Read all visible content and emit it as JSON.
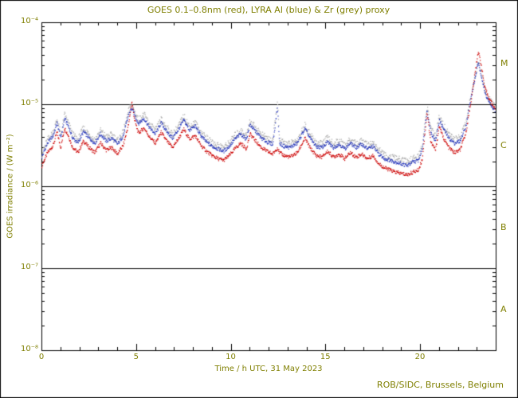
{
  "page": {
    "title": "GOES 0.1–0.8nm (red), LYRA Al (blue) & Zr (grey) proxy",
    "xlabel": "Time / h UTC, 31 May 2023",
    "ylabel": "GOES irradiance / (W m⁻²)",
    "credit": "ROB/SIDC, Brussels, Belgium",
    "text_color": "#7f7f00",
    "frame_color": "#000000",
    "background_color": "#ffffff"
  },
  "chart_data": {
    "type": "scatter",
    "title": "GOES 0.1–0.8nm (red), LYRA Al (blue) & Zr (grey) proxy",
    "xlabel": "Time / h UTC, 31 May 2023",
    "ylabel": "GOES irradiance / (W m-2)",
    "x_range": [
      0,
      24
    ],
    "x_major_ticks": [
      0,
      5,
      10,
      15,
      20
    ],
    "x_minor_step": 1,
    "y_log_range": [
      -8,
      -4
    ],
    "y_tick_exponents": [
      -4,
      -5,
      -6,
      -7,
      -8
    ],
    "y_tick_labels": [
      "10⁻⁴",
      "10⁻⁵",
      "10⁻⁶",
      "10⁻⁷",
      "10⁻⁸"
    ],
    "hlines_wm2": [
      1e-05,
      1e-06,
      1e-07
    ],
    "class_labels": [
      {
        "label": "M",
        "log_mid": -4.5
      },
      {
        "label": "C",
        "log_mid": -5.5
      },
      {
        "label": "B",
        "log_mid": -6.5
      },
      {
        "label": "A",
        "log_mid": -7.5
      }
    ],
    "grid": false,
    "legend_position": "in-title",
    "value_scale": 1e-06,
    "t_hours": [
      0,
      0.3,
      0.6,
      0.8,
      1.0,
      1.2,
      1.4,
      1.6,
      1.9,
      2.2,
      2.5,
      2.8,
      3.1,
      3.4,
      3.7,
      4.0,
      4.3,
      4.6,
      4.75,
      4.9,
      5.1,
      5.4,
      5.7,
      6.0,
      6.3,
      6.6,
      6.9,
      7.2,
      7.5,
      7.8,
      8.1,
      8.4,
      8.7,
      9.0,
      9.3,
      9.6,
      9.9,
      10.2,
      10.5,
      10.8,
      11.0,
      11.3,
      11.6,
      11.9,
      12.2,
      12.45,
      12.55,
      12.8,
      13.1,
      13.5,
      13.9,
      14.2,
      14.5,
      14.8,
      15.1,
      15.4,
      15.7,
      16.0,
      16.3,
      16.6,
      16.9,
      17.2,
      17.5,
      17.8,
      18.1,
      18.4,
      18.7,
      19.0,
      19.3,
      19.6,
      19.9,
      20.1,
      20.35,
      20.55,
      20.8,
      21.0,
      21.2,
      21.5,
      21.8,
      22.1,
      22.4,
      22.7,
      23.05,
      23.2,
      23.4,
      23.7,
      23.95
    ],
    "series": [
      {
        "name": "GOES 0.1-0.8nm (red)",
        "color": "#cc0000",
        "values": [
          1.8,
          2.6,
          3.2,
          4.6,
          3.0,
          5.2,
          4.2,
          3.1,
          2.6,
          3.6,
          3.0,
          2.6,
          3.4,
          2.8,
          3.0,
          2.5,
          3.2,
          6.0,
          11.0,
          6.5,
          4.5,
          5.2,
          4.0,
          3.4,
          4.6,
          3.6,
          3.0,
          3.8,
          5.0,
          3.8,
          4.2,
          3.2,
          2.7,
          2.4,
          2.2,
          2.1,
          2.4,
          2.9,
          3.4,
          2.9,
          4.4,
          3.6,
          3.0,
          2.7,
          2.5,
          3.0,
          2.6,
          2.4,
          2.3,
          2.6,
          3.9,
          2.9,
          2.4,
          2.3,
          2.7,
          2.3,
          2.5,
          2.2,
          2.6,
          2.3,
          2.5,
          2.2,
          2.4,
          1.9,
          1.7,
          1.6,
          1.5,
          1.45,
          1.4,
          1.5,
          1.6,
          2.2,
          8.0,
          3.5,
          2.8,
          5.5,
          4.0,
          3.0,
          2.6,
          2.8,
          4.5,
          12.0,
          45.0,
          32.0,
          16.0,
          11.0,
          9.0
        ]
      },
      {
        "name": "LYRA Al proxy (blue)",
        "color": "#2233bb",
        "values": [
          2.3,
          3.4,
          4.2,
          6.0,
          3.9,
          6.8,
          5.5,
          4.0,
          3.4,
          4.7,
          3.9,
          3.4,
          4.4,
          3.6,
          3.9,
          3.3,
          4.2,
          7.8,
          9.0,
          7.5,
          5.9,
          6.8,
          5.2,
          4.4,
          6.0,
          4.7,
          3.9,
          4.9,
          6.5,
          4.9,
          5.5,
          4.2,
          3.5,
          3.1,
          2.9,
          2.7,
          3.1,
          3.8,
          4.4,
          3.8,
          5.7,
          4.7,
          3.9,
          3.5,
          3.3,
          9.5,
          3.4,
          3.1,
          3.0,
          3.4,
          5.1,
          3.8,
          3.1,
          3.0,
          3.5,
          3.0,
          3.3,
          2.9,
          3.4,
          3.0,
          3.3,
          2.9,
          3.1,
          2.5,
          2.2,
          2.1,
          2.0,
          1.9,
          1.8,
          2.0,
          2.1,
          2.9,
          8.5,
          4.6,
          3.6,
          6.5,
          5.2,
          3.9,
          3.4,
          3.6,
          5.5,
          13.0,
          32.0,
          24.0,
          14.0,
          10.0,
          8.5
        ]
      },
      {
        "name": "LYRA Zr proxy (grey)",
        "color": "#a8a8a8",
        "values": [
          2.5,
          3.7,
          4.6,
          6.6,
          4.3,
          7.5,
          6.0,
          4.4,
          3.7,
          5.2,
          4.3,
          3.7,
          4.8,
          4.0,
          4.3,
          3.6,
          4.6,
          8.6,
          9.9,
          8.2,
          6.5,
          7.5,
          5.7,
          4.8,
          6.6,
          5.2,
          4.3,
          5.4,
          7.2,
          5.4,
          6.0,
          4.6,
          3.9,
          3.4,
          3.2,
          3.0,
          3.4,
          4.2,
          4.8,
          4.2,
          6.3,
          5.2,
          4.3,
          3.9,
          3.6,
          11.0,
          3.7,
          3.4,
          3.3,
          3.7,
          5.6,
          4.2,
          3.4,
          3.3,
          3.9,
          3.3,
          3.6,
          3.2,
          3.7,
          3.3,
          3.6,
          3.2,
          3.4,
          2.8,
          2.4,
          2.3,
          2.2,
          2.1,
          2.0,
          2.2,
          2.3,
          3.2,
          9.3,
          5.1,
          4.0,
          7.2,
          5.7,
          4.3,
          3.7,
          4.0,
          6.0,
          14.0,
          34.0,
          26.0,
          15.0,
          11.0,
          9.3
        ]
      }
    ]
  }
}
